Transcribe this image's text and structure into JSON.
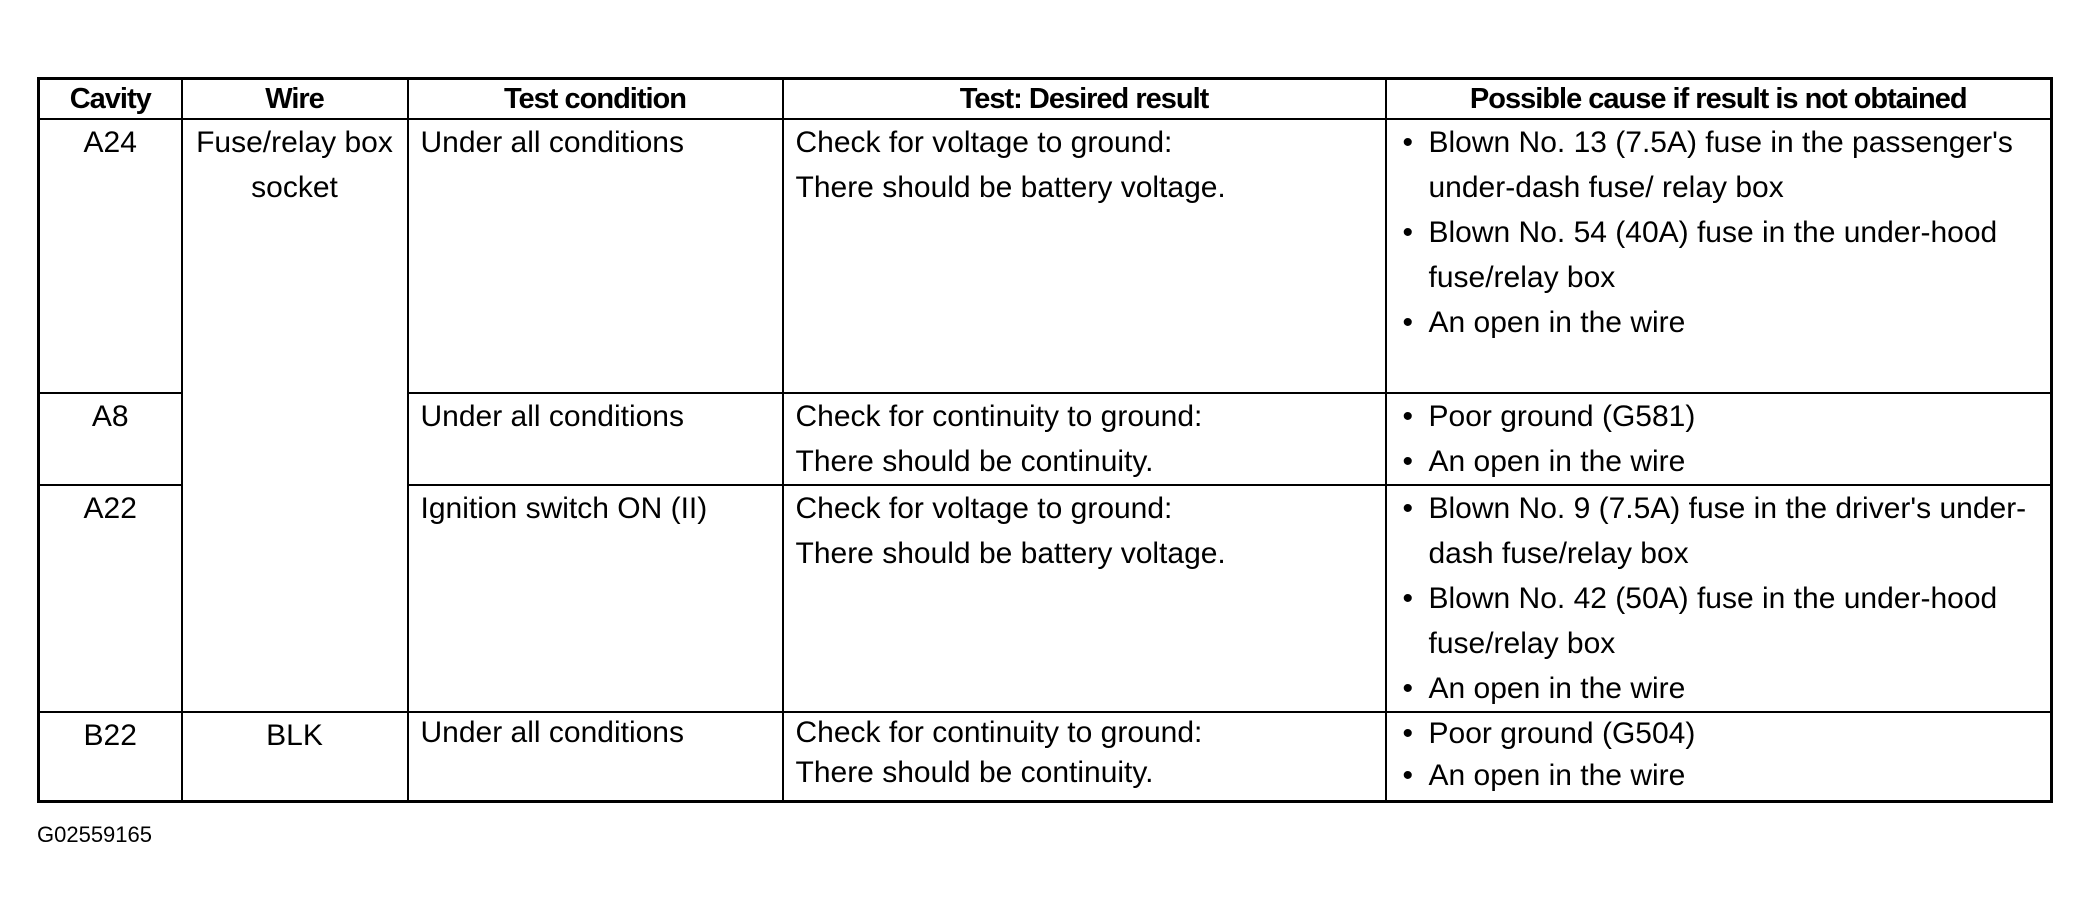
{
  "headers": [
    "Cavity",
    "Wire",
    "Test condition",
    "Test: Desired result",
    "Possible cause if result is not obtained"
  ],
  "rows": [
    {
      "cavity": "A24",
      "wire": "Fuse/relay box socket",
      "condition": "Under all conditions",
      "result": [
        "Check for voltage to ground:",
        "There should be battery voltage."
      ],
      "causes": [
        "Blown No. 13 (7.5A) fuse in the passenger's under-dash fuse/ relay box",
        "Blown No. 54 (40A) fuse in the under-hood fuse/relay box",
        "An open in the wire"
      ]
    },
    {
      "cavity": "A8",
      "condition": "Under all conditions",
      "result": [
        "Check for continuity to ground:",
        "There should be continuity."
      ],
      "causes": [
        "Poor ground (G581)",
        "An open in the wire"
      ]
    },
    {
      "cavity": "A22",
      "condition": "Ignition switch ON (II)",
      "result": [
        "Check for voltage to ground:",
        "There should be battery voltage."
      ],
      "causes": [
        "Blown No. 9 (7.5A) fuse in the driver's under-dash fuse/relay box",
        "Blown No. 42 (50A) fuse in the under-hood fuse/relay box",
        "An open in the wire"
      ]
    },
    {
      "cavity": "B22",
      "wire": "BLK",
      "condition": "Under all conditions",
      "result": [
        "Check for continuity to ground:",
        "There should be continuity."
      ],
      "causes": [
        "Poor ground (G504)",
        "An open in the wire"
      ]
    }
  ],
  "figure_id": "G02559165"
}
